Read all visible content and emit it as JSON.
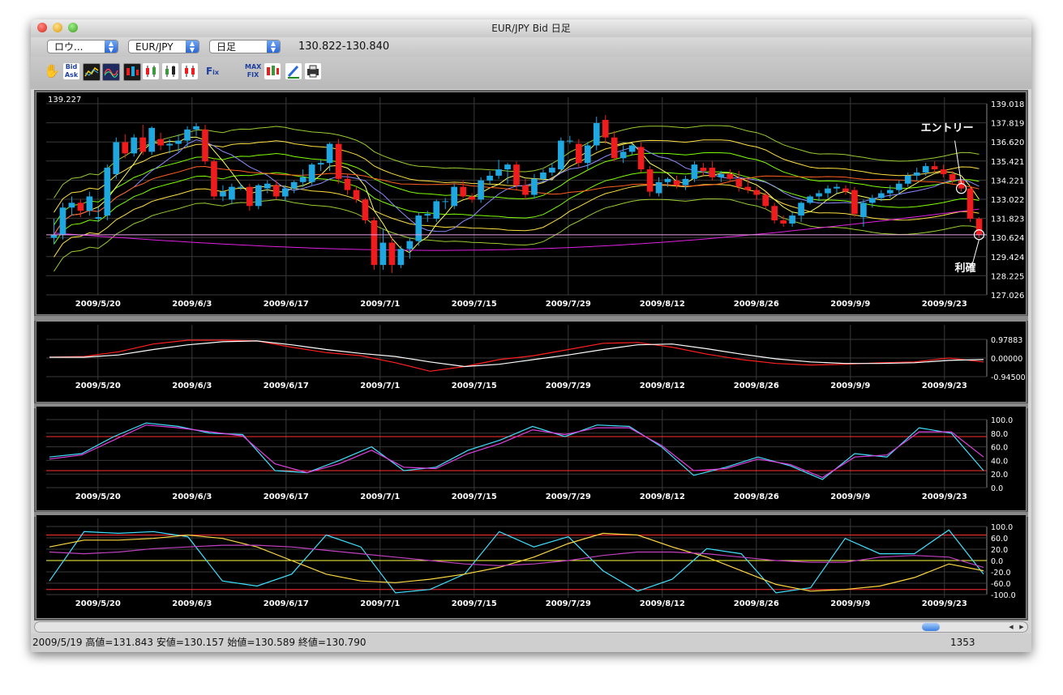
{
  "window": {
    "title": "EUR/JPY Bid 日足"
  },
  "selectors": {
    "mode": "ロウ...",
    "symbol": "EUR/JPY",
    "period": "日足",
    "bid_ask_quote": "130.822-130.840"
  },
  "toolbar_tools": [
    "hand-tool",
    "bid-ask-toggle",
    "indicator-panel",
    "oscillator-panel",
    "candlestick-panel",
    "candle-up",
    "candle-down",
    "candle-mixed",
    "fix-tool",
    "max-fix-tool",
    "color-candle-tool",
    "pencil-tool",
    "print-tool"
  ],
  "colors": {
    "bullish": "#1ea7e0",
    "bearish": "#ee1c1c",
    "background": "#000000",
    "grid": "#3a3a3a",
    "axis_text": "#ffffff",
    "overbought_line": "#ff3030",
    "neutral_line": "#ffff40"
  },
  "status": {
    "ohlc": "2009/5/19 高値=131.843 安値=130.157 始値=130.589 終値=130.790",
    "bar_count": "1353"
  },
  "chart_data": [
    {
      "type": "candlestick",
      "top_label": "139.227",
      "ylim": [
        127.026,
        139.018
      ],
      "y_ticks": [
        "139.018",
        "137.819",
        "136.620",
        "135.421",
        "134.221",
        "133.022",
        "131.823",
        "130.624",
        "129.424",
        "128.225",
        "127.026"
      ],
      "x_labels": [
        "2009/5/20",
        "2009/6/3",
        "2009/6/17",
        "2009/7/1",
        "2009/7/15",
        "2009/7/29",
        "2009/8/12",
        "2009/8/26",
        "2009/9/9",
        "2009/9/23"
      ],
      "annotations": {
        "entry": "エントリー",
        "exit": "利確"
      },
      "current_price": 130.79,
      "candles": [
        {
          "o": 130.6,
          "h": 131.8,
          "l": 130.2,
          "c": 130.8
        },
        {
          "o": 130.8,
          "h": 132.8,
          "l": 130.5,
          "c": 132.5
        },
        {
          "o": 132.5,
          "h": 133.2,
          "l": 132.0,
          "c": 132.8
        },
        {
          "o": 132.8,
          "h": 133.0,
          "l": 131.9,
          "c": 132.3
        },
        {
          "o": 132.3,
          "h": 133.5,
          "l": 132.0,
          "c": 133.2
        },
        {
          "o": 131.8,
          "h": 132.5,
          "l": 131.6,
          "c": 131.9
        },
        {
          "o": 132.0,
          "h": 135.2,
          "l": 131.7,
          "c": 135.0
        },
        {
          "o": 134.6,
          "h": 136.9,
          "l": 134.3,
          "c": 136.6
        },
        {
          "o": 136.6,
          "h": 137.1,
          "l": 135.6,
          "c": 135.9
        },
        {
          "o": 135.9,
          "h": 137.1,
          "l": 135.7,
          "c": 136.9
        },
        {
          "o": 136.9,
          "h": 137.7,
          "l": 135.8,
          "c": 136.0
        },
        {
          "o": 136.0,
          "h": 137.6,
          "l": 135.8,
          "c": 137.5
        },
        {
          "o": 136.8,
          "h": 137.2,
          "l": 136.1,
          "c": 136.4
        },
        {
          "o": 136.4,
          "h": 136.8,
          "l": 135.9,
          "c": 136.5
        },
        {
          "o": 136.5,
          "h": 137.1,
          "l": 136.0,
          "c": 136.7
        },
        {
          "o": 136.7,
          "h": 137.6,
          "l": 136.3,
          "c": 137.4
        },
        {
          "o": 137.4,
          "h": 137.8,
          "l": 137.0,
          "c": 137.6
        },
        {
          "o": 137.4,
          "h": 137.7,
          "l": 135.2,
          "c": 135.4
        },
        {
          "o": 135.4,
          "h": 135.6,
          "l": 133.0,
          "c": 133.2
        },
        {
          "o": 133.2,
          "h": 133.9,
          "l": 132.9,
          "c": 133.5
        },
        {
          "o": 133.0,
          "h": 134.0,
          "l": 132.7,
          "c": 133.8
        },
        {
          "o": 133.8,
          "h": 134.0,
          "l": 133.6,
          "c": 133.8
        },
        {
          "o": 133.8,
          "h": 134.0,
          "l": 132.3,
          "c": 132.6
        },
        {
          "o": 132.6,
          "h": 134.0,
          "l": 132.4,
          "c": 133.9
        },
        {
          "o": 133.7,
          "h": 134.2,
          "l": 133.4,
          "c": 134.0
        },
        {
          "o": 133.9,
          "h": 134.2,
          "l": 133.0,
          "c": 133.2
        },
        {
          "o": 133.2,
          "h": 133.9,
          "l": 132.9,
          "c": 133.7
        },
        {
          "o": 133.7,
          "h": 134.2,
          "l": 133.4,
          "c": 134.1
        },
        {
          "o": 134.1,
          "h": 134.9,
          "l": 133.8,
          "c": 134.4
        },
        {
          "o": 134.1,
          "h": 135.3,
          "l": 133.9,
          "c": 135.2
        },
        {
          "o": 135.2,
          "h": 135.5,
          "l": 134.8,
          "c": 135.3
        },
        {
          "o": 135.3,
          "h": 136.6,
          "l": 134.8,
          "c": 136.5
        },
        {
          "o": 136.5,
          "h": 136.8,
          "l": 134.0,
          "c": 134.3
        },
        {
          "o": 134.3,
          "h": 134.6,
          "l": 133.3,
          "c": 133.6
        },
        {
          "o": 133.6,
          "h": 133.8,
          "l": 132.8,
          "c": 133.0
        },
        {
          "o": 133.0,
          "h": 133.1,
          "l": 131.5,
          "c": 131.7
        },
        {
          "o": 131.7,
          "h": 131.9,
          "l": 128.6,
          "c": 128.9
        },
        {
          "o": 128.9,
          "h": 131.2,
          "l": 128.6,
          "c": 130.3
        },
        {
          "o": 130.3,
          "h": 130.6,
          "l": 128.4,
          "c": 128.9
        },
        {
          "o": 128.9,
          "h": 130.1,
          "l": 128.7,
          "c": 129.9
        },
        {
          "o": 129.9,
          "h": 130.6,
          "l": 129.3,
          "c": 130.4
        },
        {
          "o": 130.4,
          "h": 132.2,
          "l": 130.1,
          "c": 132.0
        },
        {
          "o": 132.0,
          "h": 132.3,
          "l": 131.6,
          "c": 132.1
        },
        {
          "o": 131.8,
          "h": 133.0,
          "l": 131.6,
          "c": 132.9
        },
        {
          "o": 132.9,
          "h": 133.1,
          "l": 132.4,
          "c": 132.9
        },
        {
          "o": 132.6,
          "h": 134.0,
          "l": 132.4,
          "c": 133.8
        },
        {
          "o": 133.8,
          "h": 134.2,
          "l": 133.1,
          "c": 133.2
        },
        {
          "o": 133.2,
          "h": 133.4,
          "l": 132.8,
          "c": 133.0
        },
        {
          "o": 133.0,
          "h": 134.4,
          "l": 132.8,
          "c": 134.2
        },
        {
          "o": 134.2,
          "h": 134.8,
          "l": 133.9,
          "c": 134.5
        },
        {
          "o": 134.5,
          "h": 135.5,
          "l": 134.3,
          "c": 134.9
        },
        {
          "o": 134.9,
          "h": 135.3,
          "l": 134.0,
          "c": 135.2
        },
        {
          "o": 135.2,
          "h": 135.4,
          "l": 133.6,
          "c": 133.9
        },
        {
          "o": 133.9,
          "h": 134.3,
          "l": 133.0,
          "c": 133.3
        },
        {
          "o": 133.3,
          "h": 134.6,
          "l": 133.1,
          "c": 134.3
        },
        {
          "o": 134.3,
          "h": 134.9,
          "l": 134.1,
          "c": 134.7
        },
        {
          "o": 134.7,
          "h": 135.3,
          "l": 134.5,
          "c": 135.0
        },
        {
          "o": 134.9,
          "h": 136.9,
          "l": 134.7,
          "c": 136.7
        },
        {
          "o": 136.7,
          "h": 137.0,
          "l": 136.5,
          "c": 136.7
        },
        {
          "o": 136.5,
          "h": 136.8,
          "l": 135.0,
          "c": 135.3
        },
        {
          "o": 135.3,
          "h": 136.6,
          "l": 134.9,
          "c": 136.4
        },
        {
          "o": 136.4,
          "h": 138.2,
          "l": 136.1,
          "c": 137.8
        },
        {
          "o": 138.0,
          "h": 138.3,
          "l": 136.5,
          "c": 136.9
        },
        {
          "o": 136.9,
          "h": 137.3,
          "l": 135.4,
          "c": 135.6
        },
        {
          "o": 135.6,
          "h": 136.4,
          "l": 135.3,
          "c": 136.0
        },
        {
          "o": 136.0,
          "h": 136.5,
          "l": 135.8,
          "c": 136.4
        },
        {
          "o": 136.3,
          "h": 136.6,
          "l": 134.7,
          "c": 134.9
        },
        {
          "o": 134.9,
          "h": 135.1,
          "l": 133.2,
          "c": 133.5
        },
        {
          "o": 133.4,
          "h": 134.4,
          "l": 133.2,
          "c": 134.1
        },
        {
          "o": 134.1,
          "h": 134.4,
          "l": 133.8,
          "c": 134.3
        },
        {
          "o": 134.2,
          "h": 134.5,
          "l": 133.7,
          "c": 133.9
        },
        {
          "o": 133.9,
          "h": 134.5,
          "l": 133.6,
          "c": 134.3
        },
        {
          "o": 134.3,
          "h": 135.4,
          "l": 134.1,
          "c": 135.2
        },
        {
          "o": 135.0,
          "h": 135.3,
          "l": 134.5,
          "c": 134.8
        },
        {
          "o": 135.0,
          "h": 135.4,
          "l": 134.2,
          "c": 134.4
        },
        {
          "o": 134.4,
          "h": 134.8,
          "l": 134.1,
          "c": 134.6
        },
        {
          "o": 134.6,
          "h": 134.9,
          "l": 134.1,
          "c": 134.3
        },
        {
          "o": 134.3,
          "h": 134.8,
          "l": 133.5,
          "c": 133.8
        },
        {
          "o": 133.8,
          "h": 134.3,
          "l": 133.4,
          "c": 133.6
        },
        {
          "o": 133.6,
          "h": 133.8,
          "l": 133.0,
          "c": 133.3
        },
        {
          "o": 133.3,
          "h": 133.5,
          "l": 132.4,
          "c": 132.6
        },
        {
          "o": 132.6,
          "h": 132.8,
          "l": 131.5,
          "c": 131.7
        },
        {
          "o": 131.7,
          "h": 132.0,
          "l": 131.3,
          "c": 131.5
        },
        {
          "o": 131.5,
          "h": 132.2,
          "l": 131.3,
          "c": 132.0
        },
        {
          "o": 132.0,
          "h": 132.9,
          "l": 131.6,
          "c": 132.8
        },
        {
          "o": 132.8,
          "h": 133.3,
          "l": 132.7,
          "c": 133.2
        },
        {
          "o": 133.2,
          "h": 133.6,
          "l": 132.9,
          "c": 133.4
        },
        {
          "o": 133.4,
          "h": 133.9,
          "l": 133.1,
          "c": 133.7
        },
        {
          "o": 133.7,
          "h": 134.0,
          "l": 133.4,
          "c": 133.8
        },
        {
          "o": 133.7,
          "h": 133.9,
          "l": 133.3,
          "c": 133.5
        },
        {
          "o": 133.6,
          "h": 133.8,
          "l": 131.9,
          "c": 132.1
        },
        {
          "o": 131.9,
          "h": 133.0,
          "l": 131.3,
          "c": 132.8
        },
        {
          "o": 132.8,
          "h": 133.3,
          "l": 132.5,
          "c": 133.1
        },
        {
          "o": 133.1,
          "h": 133.6,
          "l": 132.9,
          "c": 133.4
        },
        {
          "o": 133.4,
          "h": 133.9,
          "l": 133.1,
          "c": 133.6
        },
        {
          "o": 133.6,
          "h": 134.2,
          "l": 133.3,
          "c": 134.0
        },
        {
          "o": 134.0,
          "h": 134.7,
          "l": 133.8,
          "c": 134.5
        },
        {
          "o": 134.5,
          "h": 135.0,
          "l": 134.2,
          "c": 134.7
        },
        {
          "o": 134.7,
          "h": 135.3,
          "l": 134.5,
          "c": 135.1
        },
        {
          "o": 135.1,
          "h": 135.4,
          "l": 134.7,
          "c": 134.9
        },
        {
          "o": 134.9,
          "h": 135.2,
          "l": 134.4,
          "c": 134.6
        },
        {
          "o": 134.6,
          "h": 134.8,
          "l": 134.0,
          "c": 134.2
        },
        {
          "o": 134.2,
          "h": 134.3,
          "l": 133.5,
          "c": 133.7
        },
        {
          "o": 133.7,
          "h": 133.9,
          "l": 131.6,
          "c": 131.8
        },
        {
          "o": 131.8,
          "h": 131.9,
          "l": 130.6,
          "c": 130.8
        }
      ]
    },
    {
      "type": "line",
      "ylim": [
        -1.2,
        1.2
      ],
      "y_ticks": [
        "0.97883",
        "0.00000",
        "-0.94500"
      ],
      "x_labels": [
        "2009/5/20",
        "2009/6/3",
        "2009/6/17",
        "2009/7/1",
        "2009/7/15",
        "2009/7/29",
        "2009/8/12",
        "2009/8/26",
        "2009/9/9",
        "2009/9/23"
      ],
      "series": [
        {
          "color": "#ff2020",
          "values": [
            0.05,
            0.1,
            0.4,
            0.9,
            1.15,
            1.15,
            1.1,
            0.7,
            0.35,
            0.15,
            -0.3,
            -0.85,
            -0.55,
            -0.1,
            0.15,
            0.55,
            0.95,
            1.0,
            0.7,
            0.25,
            -0.1,
            -0.35,
            -0.45,
            -0.4,
            -0.3,
            -0.25,
            0.0,
            -0.25
          ]
        },
        {
          "color": "#ffffff",
          "values": [
            0.05,
            0.05,
            0.2,
            0.55,
            0.85,
            1.05,
            1.1,
            0.85,
            0.55,
            0.3,
            0.1,
            -0.25,
            -0.55,
            -0.4,
            -0.1,
            0.2,
            0.55,
            0.85,
            0.9,
            0.6,
            0.25,
            -0.05,
            -0.25,
            -0.35,
            -0.35,
            -0.3,
            -0.15,
            -0.1
          ]
        }
      ]
    },
    {
      "type": "line",
      "ylim": [
        0,
        100
      ],
      "y_ticks": [
        "100.0",
        "80.0",
        "60.0",
        "40.0",
        "20.0",
        "0.0"
      ],
      "reference_lines": [
        75,
        25
      ],
      "x_labels": [
        "2009/5/20",
        "2009/6/3",
        "2009/6/17",
        "2009/7/1",
        "2009/7/15",
        "2009/7/29",
        "2009/8/12",
        "2009/8/26",
        "2009/9/9",
        "2009/9/23"
      ],
      "series": [
        {
          "color": "#40e0ff",
          "values": [
            45,
            50,
            75,
            95,
            90,
            80,
            78,
            25,
            22,
            40,
            60,
            25,
            30,
            55,
            70,
            90,
            75,
            92,
            90,
            60,
            18,
            30,
            45,
            32,
            12,
            50,
            45,
            88,
            80,
            25
          ]
        },
        {
          "color": "#e040e0",
          "values": [
            42,
            48,
            70,
            92,
            88,
            82,
            76,
            35,
            22,
            35,
            55,
            30,
            28,
            50,
            65,
            85,
            78,
            88,
            88,
            62,
            25,
            28,
            42,
            34,
            15,
            45,
            48,
            82,
            82,
            45
          ]
        }
      ]
    },
    {
      "type": "line",
      "ylim": [
        -100,
        100
      ],
      "y_ticks": [
        "100.0",
        "60.0",
        "20.0",
        "0.0",
        "-20.0",
        "-60.0",
        "-100.0"
      ],
      "reference_lines": [
        75,
        0,
        -85
      ],
      "x_labels": [
        "2009/5/20",
        "2009/6/3",
        "2009/6/17",
        "2009/7/1",
        "2009/7/15",
        "2009/7/29",
        "2009/8/12",
        "2009/8/26",
        "2009/9/9",
        "2009/9/23"
      ],
      "series": [
        {
          "color": "#40e0ff",
          "values": [
            -60,
            85,
            80,
            85,
            70,
            -60,
            -75,
            -40,
            75,
            40,
            -95,
            -85,
            -40,
            85,
            40,
            70,
            -30,
            -90,
            -55,
            35,
            20,
            -95,
            -80,
            65,
            20,
            20,
            90,
            -40
          ]
        },
        {
          "color": "#ffd840",
          "values": [
            40,
            60,
            60,
            65,
            75,
            65,
            40,
            0,
            -40,
            -60,
            -65,
            -55,
            -40,
            -20,
            10,
            50,
            80,
            75,
            40,
            10,
            -30,
            -70,
            -90,
            -85,
            -75,
            -50,
            -10,
            -30
          ]
        },
        {
          "color": "#c040c0",
          "values": [
            25,
            20,
            25,
            35,
            40,
            45,
            45,
            40,
            30,
            20,
            10,
            0,
            -10,
            -15,
            -10,
            0,
            15,
            25,
            25,
            20,
            10,
            0,
            -5,
            -5,
            10,
            15,
            10,
            -20
          ]
        }
      ]
    }
  ]
}
